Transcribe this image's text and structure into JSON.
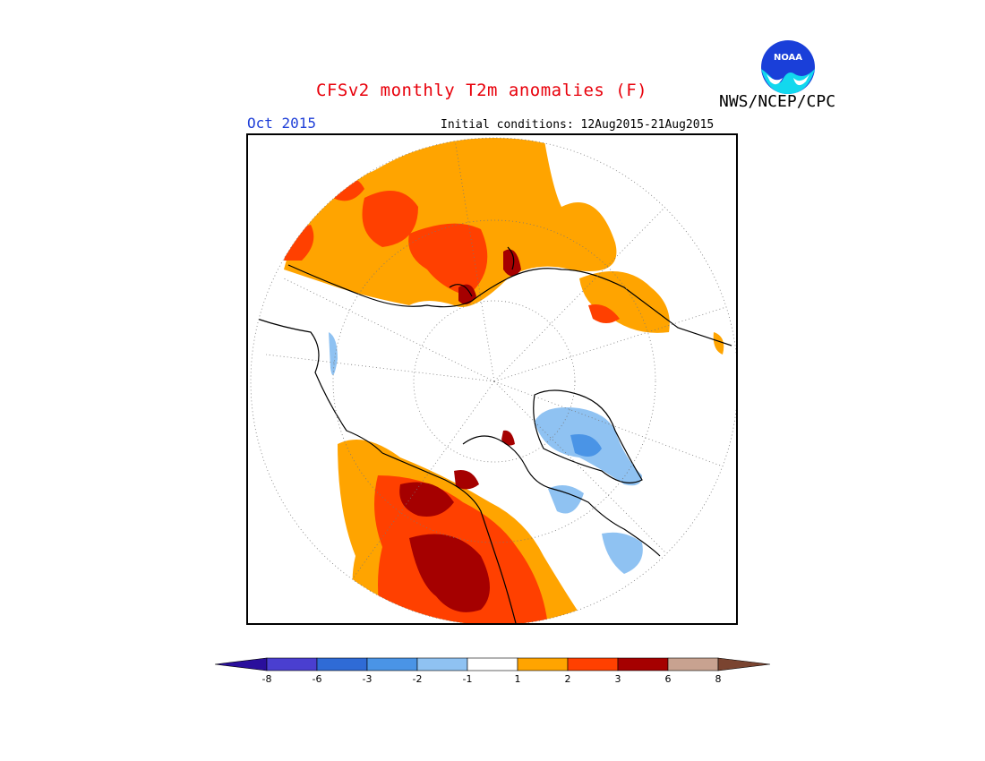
{
  "header": {
    "title": "CFSv2 monthly T2m anomalies (F)",
    "credit": "NWS/NCEP/CPC",
    "period": "Oct 2015",
    "initial_conditions": "Initial conditions: 12Aug2015-21Aug2015",
    "logo_text": "NOAA"
  },
  "legend": {
    "labels": [
      "-8",
      "-6",
      "-3",
      "-2",
      "-1",
      "1",
      "2",
      "3",
      "6",
      "8"
    ],
    "colors": [
      "#2a0f9c",
      "#4a3fd0",
      "#2f6bd6",
      "#4a94e6",
      "#8fc2f2",
      "#ffffff",
      "#ffa400",
      "#ff4000",
      "#a50000",
      "#c8a290",
      "#7a4430"
    ]
  }
}
